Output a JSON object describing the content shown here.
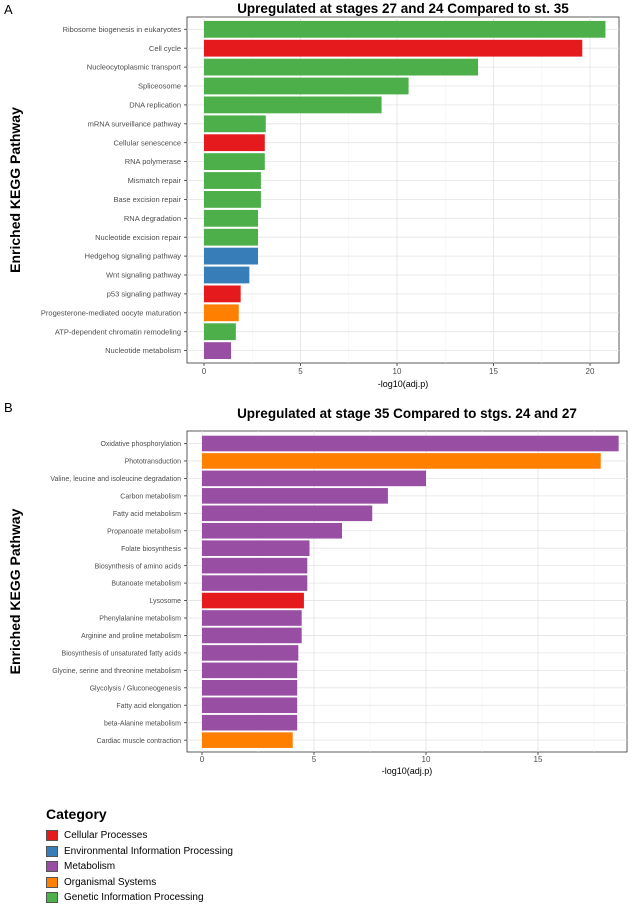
{
  "colors": {
    "Cellular Processes": "#e41a1c",
    "Environmental Information Processing": "#377eb8",
    "Metabolism": "#984ea3",
    "Organismal Systems": "#ff7f00",
    "Genetic Information Processing": "#4daf4a"
  },
  "legend": {
    "title": "Category",
    "items": [
      "Cellular Processes",
      "Environmental Information Processing",
      "Metabolism",
      "Organismal Systems",
      "Genetic Information Processing"
    ]
  },
  "chart_data": [
    {
      "panel": "A",
      "type": "bar",
      "orientation": "horizontal",
      "title": "Upregulated at stages 27 and 24 Compared to st. 35",
      "xlabel": "-log10(adj.p)",
      "ylabel": "Enriched KEGG Pathway",
      "xlim": [
        -1.5,
        21.5
      ],
      "xticks": [
        0,
        5,
        10,
        15,
        20
      ],
      "grid": true,
      "bars": [
        {
          "label": "Ribosome biogenesis in eukaryotes",
          "value": 20.8,
          "category": "Genetic Information Processing"
        },
        {
          "label": "Cell cycle",
          "value": 19.6,
          "category": "Cellular Processes"
        },
        {
          "label": "Nucleocytoplasmic transport",
          "value": 14.2,
          "category": "Genetic Information Processing"
        },
        {
          "label": "Spliceosome",
          "value": 10.6,
          "category": "Genetic Information Processing"
        },
        {
          "label": "DNA replication",
          "value": 9.2,
          "category": "Genetic Information Processing"
        },
        {
          "label": "mRNA surveillance pathway",
          "value": 3.2,
          "category": "Genetic Information Processing"
        },
        {
          "label": "Cellular senescence",
          "value": 3.15,
          "category": "Cellular Processes"
        },
        {
          "label": "RNA polymerase",
          "value": 3.15,
          "category": "Genetic Information Processing"
        },
        {
          "label": "Mismatch repair",
          "value": 2.95,
          "category": "Genetic Information Processing"
        },
        {
          "label": "Base excision repair",
          "value": 2.95,
          "category": "Genetic Information Processing"
        },
        {
          "label": "RNA degradation",
          "value": 2.8,
          "category": "Genetic Information Processing"
        },
        {
          "label": "Nucleotide excision repair",
          "value": 2.8,
          "category": "Genetic Information Processing"
        },
        {
          "label": "Hedgehog signaling pathway",
          "value": 2.8,
          "category": "Environmental Information Processing"
        },
        {
          "label": "Wnt signaling pathway",
          "value": 2.35,
          "category": "Environmental Information Processing"
        },
        {
          "label": "p53 signaling pathway",
          "value": 1.9,
          "category": "Cellular Processes"
        },
        {
          "label": "Progesterone-mediated oocyte maturation",
          "value": 1.8,
          "category": "Organismal Systems"
        },
        {
          "label": "ATP-dependent chromatin remodeling",
          "value": 1.65,
          "category": "Genetic Information Processing"
        },
        {
          "label": "Nucleotide metabolism",
          "value": 1.4,
          "category": "Metabolism"
        }
      ]
    },
    {
      "panel": "B",
      "type": "bar",
      "orientation": "horizontal",
      "title": "Upregulated at stage 35 Compared to stgs. 24 and 27",
      "xlabel": "-log10(adj.p)",
      "ylabel": "Enriched KEGG Pathway",
      "xlim": [
        -1.2,
        19.2
      ],
      "xticks": [
        0,
        5,
        10,
        15
      ],
      "grid": true,
      "bars": [
        {
          "label": "Oxidative phosphorylation",
          "value": 18.6,
          "category": "Metabolism"
        },
        {
          "label": "Phototransduction",
          "value": 17.8,
          "category": "Organismal Systems"
        },
        {
          "label": "Valine, leucine and isoleucine degradation",
          "value": 10.0,
          "category": "Metabolism"
        },
        {
          "label": "Carbon metabolism",
          "value": 8.3,
          "category": "Metabolism"
        },
        {
          "label": "Fatty acid metabolism",
          "value": 7.6,
          "category": "Metabolism"
        },
        {
          "label": "Propanoate metabolism",
          "value": 6.25,
          "category": "Metabolism"
        },
        {
          "label": "Folate biosynthesis",
          "value": 4.8,
          "category": "Metabolism"
        },
        {
          "label": "Biosynthesis of amino acids",
          "value": 4.7,
          "category": "Metabolism"
        },
        {
          "label": "Butanoate metabolism",
          "value": 4.7,
          "category": "Metabolism"
        },
        {
          "label": "Lysosome",
          "value": 4.55,
          "category": "Cellular Processes"
        },
        {
          "label": "Phenylalanine metabolism",
          "value": 4.45,
          "category": "Metabolism"
        },
        {
          "label": "Arginine and proline metabolism",
          "value": 4.45,
          "category": "Metabolism"
        },
        {
          "label": "Biosynthesis of unsaturated fatty acids",
          "value": 4.3,
          "category": "Metabolism"
        },
        {
          "label": "Glycine, serine and threonine metabolism",
          "value": 4.25,
          "category": "Metabolism"
        },
        {
          "label": "Glycolysis / Gluconeogenesis",
          "value": 4.25,
          "category": "Metabolism"
        },
        {
          "label": "Fatty acid elongation",
          "value": 4.25,
          "category": "Metabolism"
        },
        {
          "label": "beta-Alanine metabolism",
          "value": 4.25,
          "category": "Metabolism"
        },
        {
          "label": "Cardiac muscle contraction",
          "value": 4.05,
          "category": "Organismal Systems"
        }
      ]
    }
  ]
}
